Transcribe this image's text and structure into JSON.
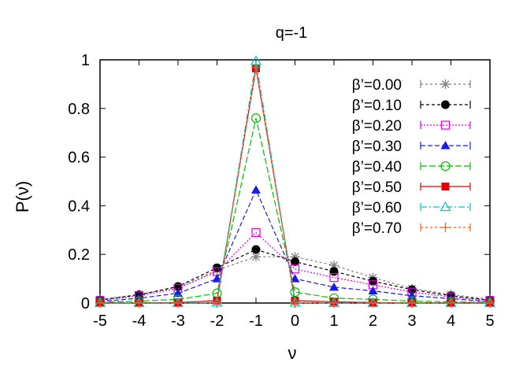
{
  "chart_data": {
    "type": "line",
    "title": "q=-1",
    "xlabel": "ν",
    "ylabel": "P(ν)",
    "xlim": [
      -5,
      5
    ],
    "ylim": [
      0,
      1
    ],
    "xticks": [
      "-5",
      "-4",
      "-3",
      "-2",
      "-1",
      "0",
      "1",
      "2",
      "3",
      "4",
      "5"
    ],
    "yticks": [
      "0",
      "0.2",
      "0.4",
      "0.6",
      "0.8",
      "1"
    ],
    "legend_position": "top-right",
    "grid": false,
    "x": [
      -5,
      -4,
      -3,
      -2,
      -1,
      0,
      1,
      2,
      3,
      4,
      5
    ],
    "series": [
      {
        "name": "β’=0.00",
        "color": "#808080",
        "marker": "star",
        "dash": "3,3",
        "values": [
          0.015,
          0.035,
          0.065,
          0.135,
          0.19,
          0.19,
          0.155,
          0.105,
          0.06,
          0.035,
          0.015
        ]
      },
      {
        "name": "β’=0.10",
        "color": "#000000",
        "marker": "circle-filled",
        "dash": "4,3",
        "values": [
          0.012,
          0.034,
          0.068,
          0.145,
          0.22,
          0.17,
          0.13,
          0.09,
          0.055,
          0.03,
          0.012
        ]
      },
      {
        "name": "β’=0.20",
        "color": "#e000e0",
        "marker": "square-open",
        "dash": "2,2",
        "values": [
          0.01,
          0.03,
          0.06,
          0.13,
          0.29,
          0.14,
          0.105,
          0.075,
          0.045,
          0.025,
          0.01
        ]
      },
      {
        "name": "β’=0.30",
        "color": "#1a1ae6",
        "marker": "triangle-filled",
        "dash": "6,3",
        "values": [
          0.006,
          0.02,
          0.04,
          0.1,
          0.465,
          0.1,
          0.065,
          0.05,
          0.03,
          0.018,
          0.006
        ]
      },
      {
        "name": "β’=0.40",
        "color": "#00c000",
        "marker": "circle-open",
        "dash": "8,3",
        "values": [
          0.003,
          0.008,
          0.015,
          0.04,
          0.76,
          0.045,
          0.02,
          0.015,
          0.008,
          0.005,
          0.003
        ]
      },
      {
        "name": "β’=0.50",
        "color": "#e00000",
        "marker": "square-filled",
        "dash": "",
        "values": [
          0.0,
          0.0,
          0.002,
          0.01,
          0.965,
          0.01,
          0.005,
          0.002,
          0.0,
          0.0,
          0.0
        ]
      },
      {
        "name": "β’=0.60",
        "color": "#00c8c8",
        "marker": "triangle-open",
        "dash": "8,3,2,3",
        "values": [
          0.0,
          0.0,
          0.0,
          0.002,
          0.995,
          0.002,
          0.0,
          0.0,
          0.0,
          0.0,
          0.0
        ]
      },
      {
        "name": "β’=0.70",
        "color": "#f06020",
        "marker": "plus",
        "dash": "3,3",
        "values": [
          0.0,
          0.0,
          0.0,
          0.0,
          0.97,
          0.0,
          0.0,
          0.0,
          0.0,
          0.0,
          0.0
        ]
      }
    ]
  }
}
